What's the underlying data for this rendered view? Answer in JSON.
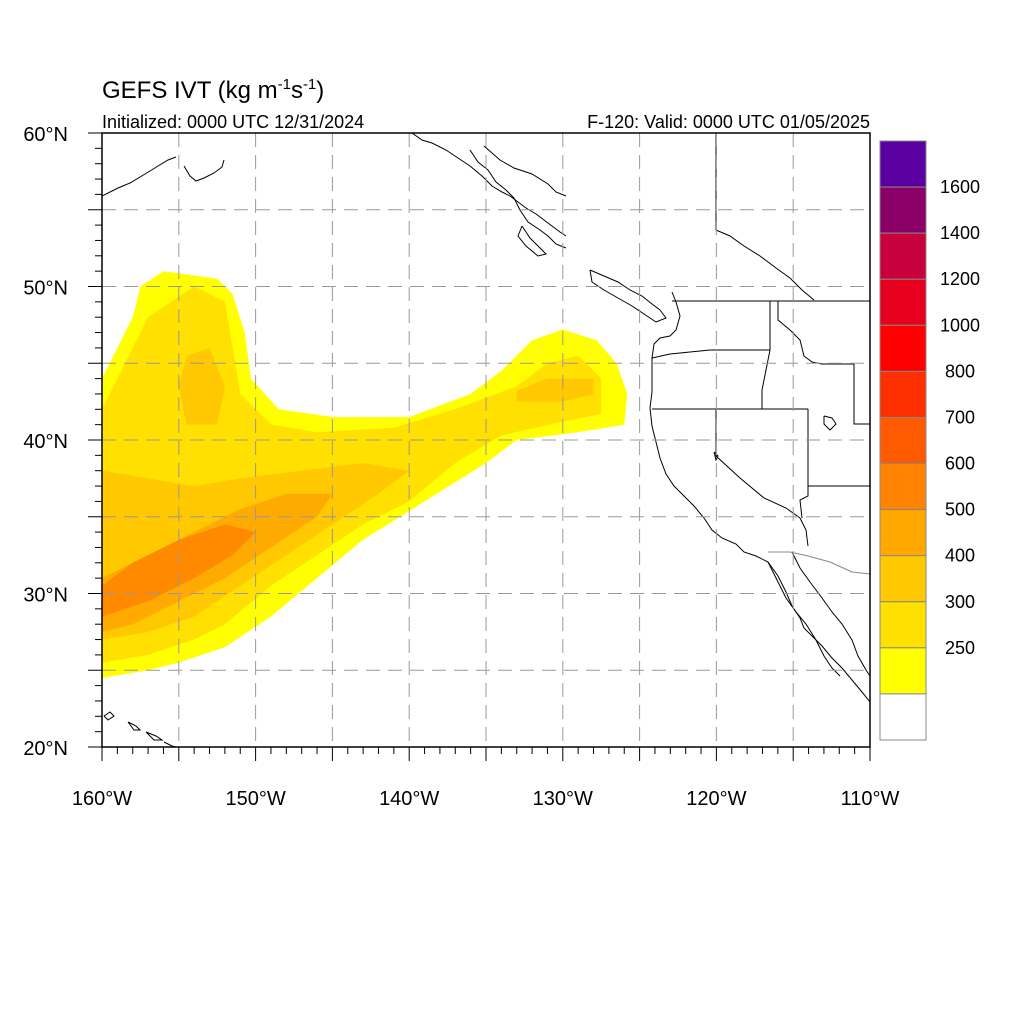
{
  "title": {
    "main": "GEFS IVT (kg m",
    "sup1": "-1",
    "mid": "s",
    "sup2": "-1",
    "close": ")"
  },
  "subtitle_left": "Initialized: 0000 UTC 12/31/2024",
  "subtitle_right": "F-120: Valid: 0000 UTC 01/05/2025",
  "map": {
    "lon_range": [
      -160,
      -110
    ],
    "lat_range": [
      20,
      60
    ],
    "grid_lons": [
      -155,
      -150,
      -145,
      -140,
      -135,
      -130,
      -125,
      -120,
      -115
    ],
    "grid_lats": [
      25,
      30,
      35,
      40,
      45,
      50,
      55
    ],
    "grid_style": "dashed",
    "lon_labels": [
      {
        "value": -160,
        "text": "160°W"
      },
      {
        "value": -150,
        "text": "150°W"
      },
      {
        "value": -140,
        "text": "140°W"
      },
      {
        "value": -130,
        "text": "130°W"
      },
      {
        "value": -120,
        "text": "120°W"
      },
      {
        "value": -110,
        "text": "110°W"
      }
    ],
    "lat_labels": [
      {
        "value": 60,
        "text": "60°N"
      },
      {
        "value": 50,
        "text": "50°N"
      },
      {
        "value": 40,
        "text": "40°N"
      },
      {
        "value": 30,
        "text": "30°N"
      },
      {
        "value": 20,
        "text": "20°N"
      }
    ]
  },
  "ivt_field": {
    "units": "kg m-1 s-1",
    "levels": [
      {
        "min": 250,
        "color": "#ffff00"
      },
      {
        "min": 300,
        "color": "#ffe000"
      },
      {
        "min": 400,
        "color": "#ffc800"
      },
      {
        "min": 500,
        "color": "#ffaa00"
      },
      {
        "min": 600,
        "color": "#ff8a00"
      }
    ],
    "regions": [
      {
        "level": 250,
        "coords": [
          [
            -160,
            24.5
          ],
          [
            -157,
            25
          ],
          [
            -155,
            25.5
          ],
          [
            -152,
            26.5
          ],
          [
            -149,
            28.5
          ],
          [
            -146,
            31
          ],
          [
            -143,
            33.5
          ],
          [
            -139,
            36
          ],
          [
            -135,
            38.5
          ],
          [
            -133,
            40
          ],
          [
            -129,
            40.5
          ],
          [
            -126,
            41
          ],
          [
            -125.8,
            43
          ],
          [
            -126.5,
            45
          ],
          [
            -127.8,
            46.5
          ],
          [
            -130,
            47.2
          ],
          [
            -132,
            46.5
          ],
          [
            -134,
            44.5
          ],
          [
            -136,
            43
          ],
          [
            -140,
            41.5
          ],
          [
            -145,
            41.5
          ],
          [
            -148.5,
            42
          ],
          [
            -150.3,
            44
          ],
          [
            -150.7,
            47
          ],
          [
            -151.5,
            49.5
          ],
          [
            -152.5,
            50.5
          ],
          [
            -156,
            51
          ],
          [
            -157.5,
            50
          ],
          [
            -158,
            48
          ],
          [
            -159,
            46
          ],
          [
            -160,
            44
          ],
          [
            -160,
            24.5
          ]
        ]
      },
      {
        "level": 300,
        "coords": [
          [
            -160,
            25.5
          ],
          [
            -157,
            26
          ],
          [
            -154,
            27
          ],
          [
            -152,
            28
          ],
          [
            -149,
            30.5
          ],
          [
            -146,
            32.5
          ],
          [
            -143,
            34.5
          ],
          [
            -140,
            36
          ],
          [
            -137,
            38.5
          ],
          [
            -134,
            40.3
          ],
          [
            -130,
            41.2
          ],
          [
            -127.5,
            41.7
          ],
          [
            -127.5,
            44
          ],
          [
            -129,
            45.5
          ],
          [
            -131,
            45
          ],
          [
            -133,
            43.5
          ],
          [
            -137,
            42
          ],
          [
            -141,
            40.8
          ],
          [
            -146,
            40.5
          ],
          [
            -149,
            41
          ],
          [
            -151,
            43
          ],
          [
            -151.5,
            46
          ],
          [
            -152,
            49
          ],
          [
            -154,
            50
          ],
          [
            -157,
            48
          ],
          [
            -158.5,
            45
          ],
          [
            -160,
            42
          ],
          [
            -160,
            25.5
          ]
        ]
      },
      {
        "level": 400,
        "coords": [
          [
            -160,
            27
          ],
          [
            -157,
            27.5
          ],
          [
            -154,
            28.5
          ],
          [
            -151,
            30.5
          ],
          [
            -148,
            32.5
          ],
          [
            -145,
            34.5
          ],
          [
            -142,
            36.5
          ],
          [
            -140,
            38
          ],
          [
            -143,
            38.5
          ],
          [
            -147,
            38
          ],
          [
            -151,
            37.5
          ],
          [
            -154,
            37
          ],
          [
            -157,
            37.5
          ],
          [
            -160,
            38
          ],
          [
            -160,
            27
          ]
        ]
      },
      {
        "level": 400,
        "coords": [
          [
            -154.5,
            41
          ],
          [
            -152.5,
            41
          ],
          [
            -152,
            43.5
          ],
          [
            -153,
            46
          ],
          [
            -154.5,
            45.5
          ],
          [
            -155,
            43.5
          ],
          [
            -154.5,
            41
          ]
        ]
      },
      {
        "level": 400,
        "coords": [
          [
            -133,
            42.5
          ],
          [
            -130,
            42.5
          ],
          [
            -128,
            43
          ],
          [
            -128,
            44
          ],
          [
            -131,
            44
          ],
          [
            -133,
            43.2
          ],
          [
            -133,
            42.5
          ]
        ]
      },
      {
        "level": 500,
        "coords": [
          [
            -160,
            27.5
          ],
          [
            -158,
            28
          ],
          [
            -155,
            29.5
          ],
          [
            -152,
            31
          ],
          [
            -149,
            33
          ],
          [
            -146,
            35
          ],
          [
            -145,
            36.5
          ],
          [
            -148,
            36.5
          ],
          [
            -151,
            35.5
          ],
          [
            -154,
            34
          ],
          [
            -157,
            32.5
          ],
          [
            -160,
            31
          ],
          [
            -160,
            27.5
          ]
        ]
      },
      {
        "level": 600,
        "coords": [
          [
            -160,
            28.5
          ],
          [
            -157,
            29.5
          ],
          [
            -154,
            31
          ],
          [
            -151.5,
            32.5
          ],
          [
            -150,
            34
          ],
          [
            -152,
            34.5
          ],
          [
            -155,
            33.5
          ],
          [
            -158,
            32
          ],
          [
            -160,
            30.5
          ],
          [
            -160,
            28.5
          ]
        ]
      }
    ]
  },
  "colorbar": {
    "labels": [
      "1600",
      "1400",
      "1200",
      "1000",
      "800",
      "700",
      "600",
      "500",
      "400",
      "300",
      "250"
    ],
    "colors": [
      "#5b00a0",
      "#8a0066",
      "#c8003c",
      "#e6001e",
      "#ff0000",
      "#ff3000",
      "#ff5a00",
      "#ff8200",
      "#ffa800",
      "#ffc800",
      "#ffe000",
      "#ffff00",
      "#ffffff"
    ],
    "border_color": "#888888"
  },
  "coastline_color": "#000000",
  "boundary_color": "#000000"
}
